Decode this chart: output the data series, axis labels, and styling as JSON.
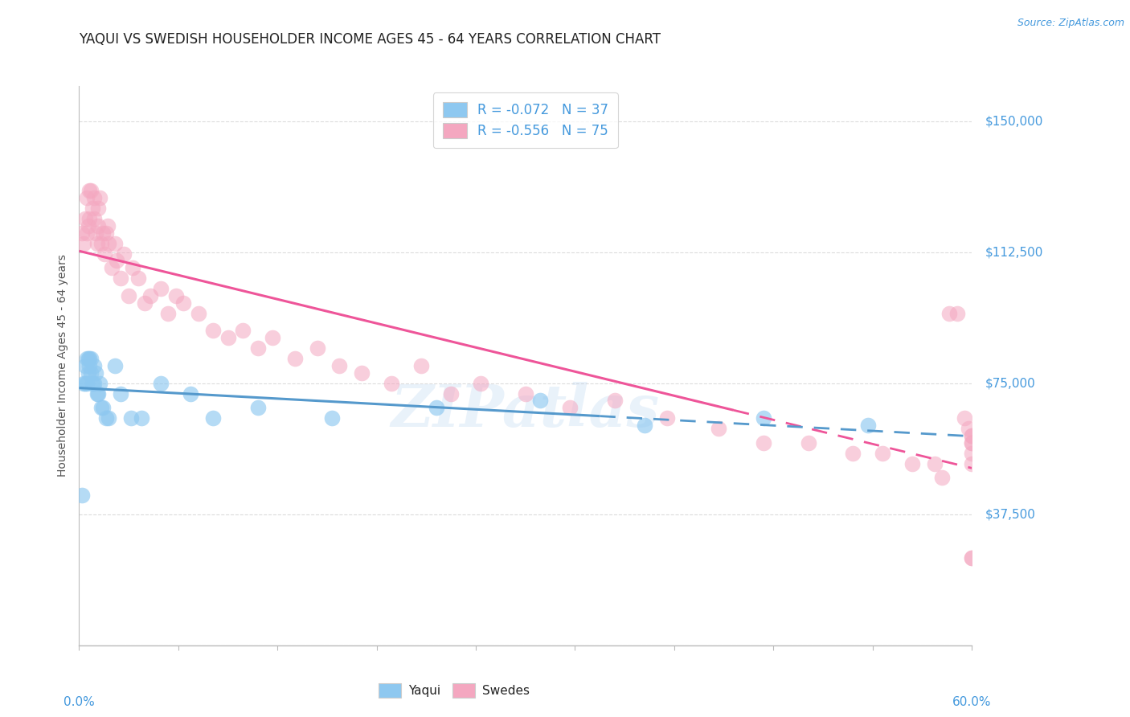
{
  "title": "YAQUI VS SWEDISH HOUSEHOLDER INCOME AGES 45 - 64 YEARS CORRELATION CHART",
  "source": "Source: ZipAtlas.com",
  "ylabel": "Householder Income Ages 45 - 64 years",
  "xlim": [
    0.0,
    0.6
  ],
  "ylim": [
    0,
    160000
  ],
  "yticks": [
    0,
    37500,
    75000,
    112500,
    150000
  ],
  "ytick_labels": [
    "",
    "$37,500",
    "$75,000",
    "$112,500",
    "$150,000"
  ],
  "xticks": [
    0.0,
    0.06667,
    0.13333,
    0.2,
    0.26667,
    0.33333,
    0.4,
    0.46667,
    0.53333,
    0.6
  ],
  "legend_r_yaqui": "R = -0.072",
  "legend_n_yaqui": "N = 37",
  "legend_r_swedes": "R = -0.556",
  "legend_n_swedes": "N = 75",
  "yaqui_color": "#8EC8F0",
  "swedes_color": "#F4A7C0",
  "yaqui_line_color": "#5599CC",
  "swedes_line_color": "#EE5599",
  "background_color": "#FFFFFF",
  "grid_color": "#CCCCCC",
  "axis_label_color": "#4499DD",
  "title_color": "#222222",
  "watermark_text": "ZIPatlas",
  "yaqui_x": [
    0.002,
    0.003,
    0.004,
    0.004,
    0.005,
    0.005,
    0.006,
    0.006,
    0.007,
    0.007,
    0.008,
    0.008,
    0.009,
    0.01,
    0.01,
    0.011,
    0.012,
    0.013,
    0.014,
    0.015,
    0.016,
    0.018,
    0.02,
    0.024,
    0.028,
    0.035,
    0.042,
    0.055,
    0.075,
    0.09,
    0.12,
    0.17,
    0.24,
    0.31,
    0.38,
    0.46,
    0.53
  ],
  "yaqui_y": [
    43000,
    75000,
    75000,
    80000,
    75000,
    82000,
    78000,
    82000,
    80000,
    82000,
    78000,
    82000,
    75000,
    75000,
    80000,
    78000,
    72000,
    72000,
    75000,
    68000,
    68000,
    65000,
    65000,
    80000,
    72000,
    65000,
    65000,
    75000,
    72000,
    65000,
    68000,
    65000,
    68000,
    70000,
    63000,
    65000,
    63000
  ],
  "swedes_x": [
    0.002,
    0.003,
    0.004,
    0.005,
    0.005,
    0.006,
    0.007,
    0.007,
    0.008,
    0.009,
    0.01,
    0.01,
    0.011,
    0.012,
    0.013,
    0.013,
    0.014,
    0.015,
    0.016,
    0.017,
    0.018,
    0.019,
    0.02,
    0.022,
    0.024,
    0.025,
    0.028,
    0.03,
    0.033,
    0.036,
    0.04,
    0.044,
    0.048,
    0.055,
    0.06,
    0.065,
    0.07,
    0.08,
    0.09,
    0.1,
    0.11,
    0.12,
    0.13,
    0.145,
    0.16,
    0.175,
    0.19,
    0.21,
    0.23,
    0.25,
    0.27,
    0.3,
    0.33,
    0.36,
    0.395,
    0.43,
    0.46,
    0.49,
    0.52,
    0.54,
    0.56,
    0.575,
    0.58,
    0.585,
    0.59,
    0.595,
    0.598,
    0.6,
    0.6,
    0.6,
    0.6,
    0.6,
    0.6,
    0.6,
    0.6
  ],
  "swedes_y": [
    118000,
    115000,
    122000,
    128000,
    118000,
    120000,
    130000,
    122000,
    130000,
    125000,
    122000,
    128000,
    118000,
    115000,
    120000,
    125000,
    128000,
    115000,
    118000,
    112000,
    118000,
    120000,
    115000,
    108000,
    115000,
    110000,
    105000,
    112000,
    100000,
    108000,
    105000,
    98000,
    100000,
    102000,
    95000,
    100000,
    98000,
    95000,
    90000,
    88000,
    90000,
    85000,
    88000,
    82000,
    85000,
    80000,
    78000,
    75000,
    80000,
    72000,
    75000,
    72000,
    68000,
    70000,
    65000,
    62000,
    58000,
    58000,
    55000,
    55000,
    52000,
    52000,
    48000,
    95000,
    95000,
    65000,
    62000,
    60000,
    60000,
    58000,
    58000,
    55000,
    52000,
    25000,
    25000
  ]
}
